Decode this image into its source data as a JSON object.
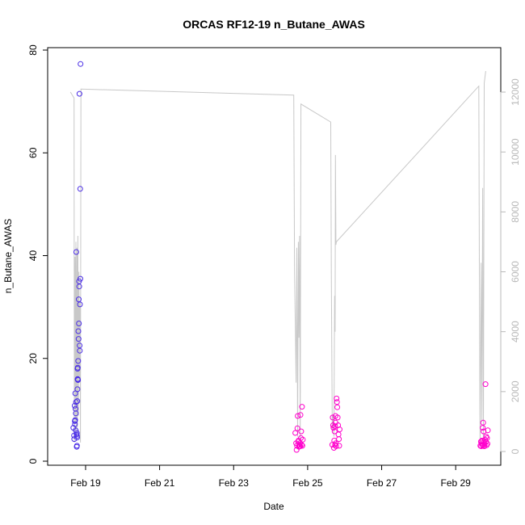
{
  "chart_data": {
    "type": "scatter",
    "title": "ORCAS RF12-19 n_Butane_AWAS",
    "xlabel": "Date",
    "ylabel": "n_Butane_AWAS",
    "xlim": [
      "2016-02-18 04:38",
      "2016-03-01 00:00"
    ],
    "ylim": [
      0,
      80
    ],
    "y2lim": [
      0,
      13000
    ],
    "x_ticks": [
      {
        "date": "2016-02-19",
        "label": "Feb 19"
      },
      {
        "date": "2016-02-21",
        "label": "Feb 21"
      },
      {
        "date": "2016-02-23",
        "label": "Feb 23"
      },
      {
        "date": "2016-02-25",
        "label": "Feb 25"
      },
      {
        "date": "2016-02-27",
        "label": "Feb 27"
      },
      {
        "date": "2016-02-29",
        "label": "Feb 29"
      }
    ],
    "y_ticks": [
      0,
      20,
      40,
      60,
      80
    ],
    "y2_ticks": [
      0,
      2000,
      4000,
      6000,
      8000,
      10000,
      12000
    ],
    "colors": {
      "flight1": "#4b2ee6",
      "flight_other": "#ff00cc",
      "altitude": "#c8c8c8",
      "axis": "#000000",
      "axis_right": "#b8b8b8"
    },
    "series": [
      {
        "color": "#4b2ee6",
        "points": [
          [
            "2016-02-18 16:04",
            6.5
          ],
          [
            "2016-02-18 16:30",
            5.0
          ],
          [
            "2016-02-18 16:38",
            4.3
          ],
          [
            "2016-02-18 17:00",
            7.8
          ],
          [
            "2016-02-18 17:06",
            7.2
          ],
          [
            "2016-02-18 17:20",
            13.2
          ],
          [
            "2016-02-18 17:27",
            10.2
          ],
          [
            "2016-02-18 17:48",
            11.5
          ],
          [
            "2016-02-18 17:34",
            6.0
          ],
          [
            "2016-02-18 17:41",
            9.3
          ],
          [
            "2016-02-18 17:55",
            40.7
          ],
          [
            "2016-02-18 18:09",
            5.2
          ],
          [
            "2016-02-18 18:16",
            2.8
          ],
          [
            "2016-02-18 18:23",
            3.0
          ],
          [
            "2016-02-18 18:30",
            4.6
          ],
          [
            "2016-02-18 18:36",
            11.7
          ],
          [
            "2016-02-18 18:43",
            14.0
          ],
          [
            "2016-02-18 18:50",
            15.9
          ],
          [
            "2016-02-18 18:56",
            18.2
          ],
          [
            "2016-02-18 19:05",
            15.8
          ],
          [
            "2016-02-18 19:12",
            19.5
          ],
          [
            "2016-02-18 19:19",
            25.3
          ],
          [
            "2016-02-18 19:26",
            23.8
          ],
          [
            "2016-02-18 19:33",
            31.5
          ],
          [
            "2016-02-18 19:40",
            26.8
          ],
          [
            "2016-02-18 19:47",
            35.0
          ],
          [
            "2016-02-18 19:54",
            34.0
          ],
          [
            "2016-02-18 20:01",
            71.5
          ],
          [
            "2016-02-18 20:08",
            22.5
          ],
          [
            "2016-02-18 20:15",
            21.5
          ],
          [
            "2016-02-18 20:22",
            30.5
          ],
          [
            "2016-02-18 20:29",
            53.0
          ],
          [
            "2016-02-18 20:36",
            35.5
          ],
          [
            "2016-02-18 20:43",
            77.3
          ],
          [
            "2016-02-18 18:20",
            5.5
          ],
          [
            "2016-02-18 18:27",
            4.9
          ],
          [
            "2016-02-18 18:45",
            18.0
          ],
          [
            "2016-02-18 18:52",
            16.0
          ],
          [
            "2016-02-18 17:15",
            8.0
          ],
          [
            "2016-02-18 16:52",
            10.8
          ]
        ]
      },
      {
        "color": "#ff00cc",
        "points": [
          [
            "2016-02-24 16:00",
            5.5
          ],
          [
            "2016-02-24 16:30",
            3.5
          ],
          [
            "2016-02-24 16:50",
            2.2
          ],
          [
            "2016-02-24 17:05",
            3.0
          ],
          [
            "2016-02-24 17:20",
            6.4
          ],
          [
            "2016-02-24 17:35",
            8.8
          ],
          [
            "2016-02-24 17:50",
            3.8
          ],
          [
            "2016-02-24 18:05",
            4.0
          ],
          [
            "2016-02-24 18:20",
            2.8
          ],
          [
            "2016-02-24 18:35",
            3.2
          ],
          [
            "2016-02-24 18:50",
            2.9
          ],
          [
            "2016-02-24 19:05",
            3.5
          ],
          [
            "2016-02-24 19:20",
            9.0
          ],
          [
            "2016-02-24 19:35",
            4.5
          ],
          [
            "2016-02-24 19:50",
            5.8
          ],
          [
            "2016-02-24 20:05",
            3.2
          ],
          [
            "2016-02-24 20:20",
            10.6
          ],
          [
            "2016-02-24 20:35",
            3.0
          ],
          [
            "2016-02-24 20:50",
            4.2
          ],
          [
            "2016-02-24 19:12",
            2.9
          ]
        ]
      },
      {
        "color": "#ff00cc",
        "points": [
          [
            "2016-02-25 16:00",
            3.2
          ],
          [
            "2016-02-25 16:15",
            8.5
          ],
          [
            "2016-02-25 16:30",
            7.0
          ],
          [
            "2016-02-25 16:45",
            6.5
          ],
          [
            "2016-02-25 17:00",
            2.6
          ],
          [
            "2016-02-25 17:15",
            4.0
          ],
          [
            "2016-02-25 17:30",
            5.8
          ],
          [
            "2016-02-25 17:45",
            6.8
          ],
          [
            "2016-02-25 18:00",
            8.8
          ],
          [
            "2016-02-25 18:15",
            3.5
          ],
          [
            "2016-02-25 18:30",
            2.9
          ],
          [
            "2016-02-25 18:45",
            12.2
          ],
          [
            "2016-02-25 19:00",
            11.5
          ],
          [
            "2016-02-25 19:15",
            10.5
          ],
          [
            "2016-02-25 19:30",
            8.5
          ],
          [
            "2016-02-25 19:45",
            7.0
          ],
          [
            "2016-02-25 20:00",
            5.2
          ],
          [
            "2016-02-25 20:15",
            4.3
          ],
          [
            "2016-02-25 20:30",
            3.0
          ],
          [
            "2016-02-25 20:45",
            6.2
          ],
          [
            "2016-02-25 17:50",
            3.2
          ],
          [
            "2016-02-25 18:05",
            7.5
          ]
        ]
      },
      {
        "color": "#ff00cc",
        "points": [
          [
            "2016-02-29 16:00",
            3.0
          ],
          [
            "2016-02-29 16:20",
            3.8
          ],
          [
            "2016-02-29 16:35",
            2.9
          ],
          [
            "2016-02-29 16:50",
            3.5
          ],
          [
            "2016-02-29 17:05",
            4.0
          ],
          [
            "2016-02-29 17:20",
            3.2
          ],
          [
            "2016-02-29 17:35",
            6.5
          ],
          [
            "2016-02-29 17:50",
            7.5
          ],
          [
            "2016-02-29 18:05",
            5.8
          ],
          [
            "2016-02-29 18:20",
            3.6
          ],
          [
            "2016-02-29 18:35",
            2.9
          ],
          [
            "2016-02-29 18:50",
            3.3
          ],
          [
            "2016-02-29 19:05",
            4.2
          ],
          [
            "2016-02-29 19:20",
            15.0
          ],
          [
            "2016-02-29 19:35",
            3.8
          ],
          [
            "2016-02-29 19:50",
            4.8
          ],
          [
            "2016-02-29 20:05",
            3.1
          ],
          [
            "2016-02-29 20:20",
            4.5
          ],
          [
            "2016-02-29 20:35",
            3.4
          ],
          [
            "2016-02-29 20:50",
            6.0
          ],
          [
            "2016-02-29 17:12",
            3.9
          ],
          [
            "2016-02-29 17:42",
            3.0
          ]
        ]
      }
    ],
    "altitude_line": [
      [
        "2016-02-18 14:10",
        12000
      ],
      [
        "2016-02-18 16:30",
        11800
      ],
      [
        "2016-02-18 16:40",
        300
      ],
      [
        "2016-02-18 17:10",
        6500
      ],
      [
        "2016-02-18 17:25",
        1000
      ],
      [
        "2016-02-18 17:45",
        7000
      ],
      [
        "2016-02-18 18:05",
        500
      ],
      [
        "2016-02-18 18:25",
        6800
      ],
      [
        "2016-02-18 18:40",
        800
      ],
      [
        "2016-02-18 19:00",
        7200
      ],
      [
        "2016-02-18 19:20",
        1200
      ],
      [
        "2016-02-18 19:40",
        6000
      ],
      [
        "2016-02-18 20:00",
        2500
      ],
      [
        "2016-02-18 20:20",
        5000
      ],
      [
        "2016-02-18 20:40",
        300
      ],
      [
        "2016-02-18 21:00",
        12100
      ],
      [
        "2016-02-24 15:00",
        11900
      ],
      [
        "2016-02-24 15:30",
        6000
      ],
      [
        "2016-02-24 16:30",
        2300
      ],
      [
        "2016-02-24 17:00",
        6800
      ],
      [
        "2016-02-24 17:30",
        500
      ],
      [
        "2016-02-24 18:00",
        7000
      ],
      [
        "2016-02-24 18:20",
        3800
      ],
      [
        "2016-02-24 18:45",
        7200
      ],
      [
        "2016-02-24 19:10",
        300
      ],
      [
        "2016-02-24 19:40",
        11600
      ],
      [
        "2016-02-25 15:00",
        11000
      ],
      [
        "2016-02-25 15:20",
        6000
      ],
      [
        "2016-02-25 16:00",
        700
      ],
      [
        "2016-02-25 16:30",
        1200
      ],
      [
        "2016-02-25 17:00",
        500
      ],
      [
        "2016-02-25 17:30",
        5200
      ],
      [
        "2016-02-25 17:50",
        4000
      ],
      [
        "2016-02-25 18:00",
        9900
      ],
      [
        "2016-02-25 18:20",
        6900
      ],
      [
        "2016-02-25 18:40",
        7000
      ],
      [
        "2016-02-29 15:00",
        12200
      ],
      [
        "2016-02-29 15:20",
        6000
      ],
      [
        "2016-02-29 15:50",
        200
      ],
      [
        "2016-02-29 16:30",
        6300
      ],
      [
        "2016-02-29 17:00",
        1000
      ],
      [
        "2016-02-29 17:30",
        8800
      ],
      [
        "2016-02-29 18:00",
        300
      ],
      [
        "2016-02-29 18:30",
        12300
      ],
      [
        "2016-02-29 19:30",
        12700
      ]
    ]
  }
}
